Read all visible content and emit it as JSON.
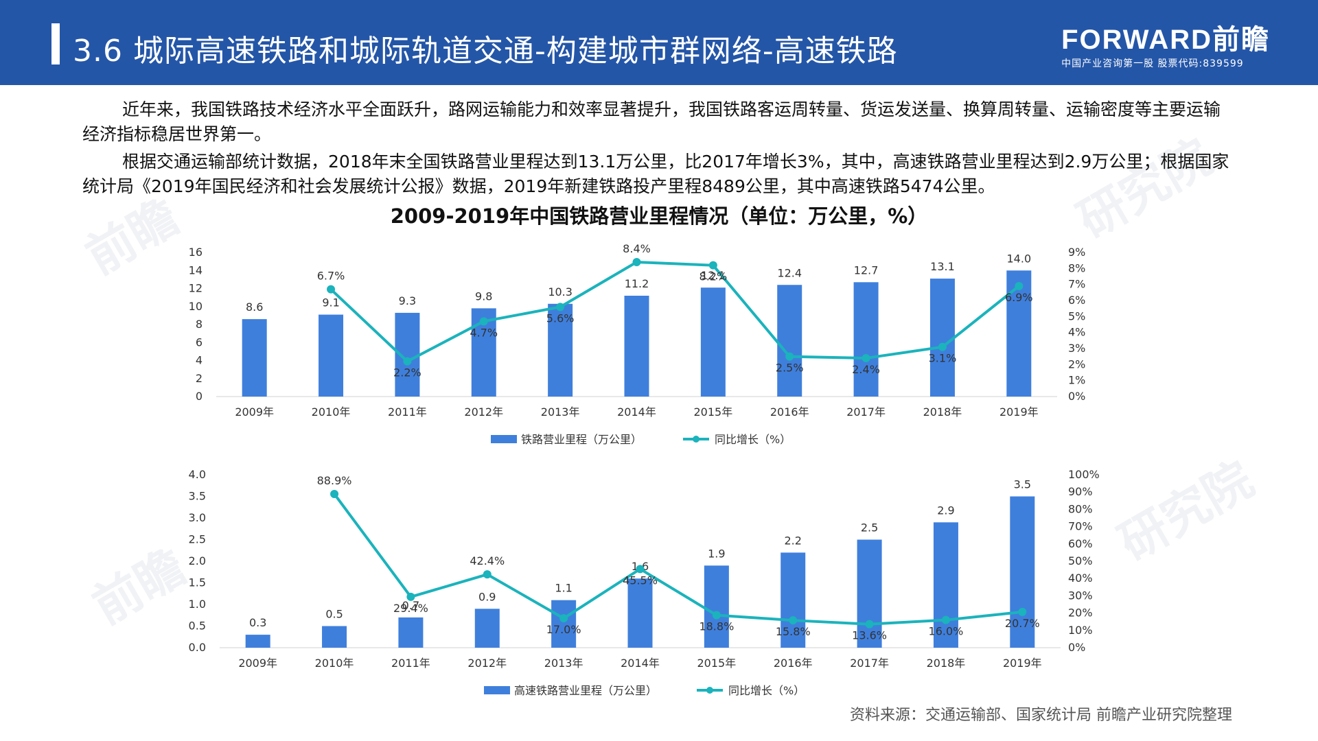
{
  "header": {
    "title": "3.6 城际高速铁路和城际轨道交通-构建城市群网络-高速铁路",
    "logo_text": "FORWARD前瞻",
    "logo_slogan": "中国产业咨询第一股  股票代码:839599"
  },
  "paragraphs": [
    "近年来，我国铁路技术经济水平全面跃升，路网运输能力和效率显著提升，我国铁路客运周转量、货运发送量、换算周转量、运输密度等主要运输经济指标稳居世界第一。",
    "根据交通运输部统计数据，2018年末全国铁路营业里程达到13.1万公里，比2017年增长3%，其中，高速铁路营业里程达到2.9万公里；根据国家统计局《2019年国民经济和社会发展统计公报》数据，2019年新建铁路投产里程8489公里，其中高速铁路5474公里。"
  ],
  "chart_heading": "2009-2019年中国铁路营业里程情况（单位：万公里，%）",
  "source": "资料来源：交通运输部、国家统计局 前瞻产业研究院整理",
  "colors": {
    "header": "#2456a8",
    "bar": "#3f7fdc",
    "line": "#1bb3bc"
  },
  "chart_data": [
    {
      "type": "bar",
      "categories": [
        "2009年",
        "2010年",
        "2011年",
        "2012年",
        "2013年",
        "2014年",
        "2015年",
        "2016年",
        "2017年",
        "2018年",
        "2019年"
      ],
      "series": [
        {
          "name": "铁路营业里程（万公里）",
          "type": "bar",
          "axis": "left",
          "values": [
            8.6,
            9.1,
            9.3,
            9.8,
            10.3,
            11.2,
            12.1,
            12.4,
            12.7,
            13.1,
            14.0
          ],
          "labels": [
            "8.6",
            "9.1",
            "9.3",
            "9.8",
            "10.3",
            "11.2",
            "12.1",
            "12.4",
            "12.7",
            "13.1",
            "14.0"
          ]
        },
        {
          "name": "同比增长（%）",
          "type": "line",
          "axis": "right",
          "values": [
            null,
            6.7,
            2.2,
            4.7,
            5.6,
            8.4,
            8.2,
            2.5,
            2.4,
            3.1,
            6.9
          ],
          "labels": [
            null,
            "6.7%",
            "2.2%",
            "4.7%",
            "5.6%",
            "8.4%",
            "8.2%",
            "2.5%",
            "2.4%",
            "3.1%",
            "6.9%"
          ]
        }
      ],
      "y_left": {
        "ticks": [
          "0",
          "2",
          "4",
          "6",
          "8",
          "10",
          "12",
          "14",
          "16"
        ],
        "range": [
          0,
          16
        ]
      },
      "y_right": {
        "ticks": [
          "0%",
          "1%",
          "2%",
          "3%",
          "4%",
          "5%",
          "6%",
          "7%",
          "8%",
          "9%"
        ],
        "range": [
          0,
          9
        ]
      },
      "legend_position": "bottom"
    },
    {
      "type": "bar",
      "categories": [
        "2009年",
        "2010年",
        "2011年",
        "2012年",
        "2013年",
        "2014年",
        "2015年",
        "2016年",
        "2017年",
        "2018年",
        "2019年"
      ],
      "series": [
        {
          "name": "高速铁路营业里程（万公里）",
          "type": "bar",
          "axis": "left",
          "values": [
            0.3,
            0.5,
            0.7,
            0.9,
            1.1,
            1.6,
            1.9,
            2.2,
            2.5,
            2.9,
            3.5
          ],
          "labels": [
            "0.3",
            "0.5",
            "0.7",
            "0.9",
            "1.1",
            "1.6",
            "1.9",
            "2.2",
            "2.5",
            "2.9",
            "3.5"
          ]
        },
        {
          "name": "同比增长（%）",
          "type": "line",
          "axis": "right",
          "values": [
            null,
            88.9,
            29.4,
            42.4,
            17.0,
            45.5,
            18.8,
            15.8,
            13.6,
            16.0,
            20.7
          ],
          "labels": [
            null,
            "88.9%",
            "29.4%",
            "42.4%",
            "17.0%",
            "45.5%",
            "18.8%",
            "15.8%",
            "13.6%",
            "16.0%",
            "20.7%"
          ]
        }
      ],
      "y_left": {
        "ticks": [
          "0.0",
          "0.5",
          "1.0",
          "1.5",
          "2.0",
          "2.5",
          "3.0",
          "3.5",
          "4.0"
        ],
        "range": [
          0,
          4
        ]
      },
      "y_right": {
        "ticks": [
          "0%",
          "10%",
          "20%",
          "30%",
          "40%",
          "50%",
          "60%",
          "70%",
          "80%",
          "90%",
          "100%"
        ],
        "range": [
          0,
          100
        ]
      },
      "legend_position": "bottom"
    }
  ]
}
